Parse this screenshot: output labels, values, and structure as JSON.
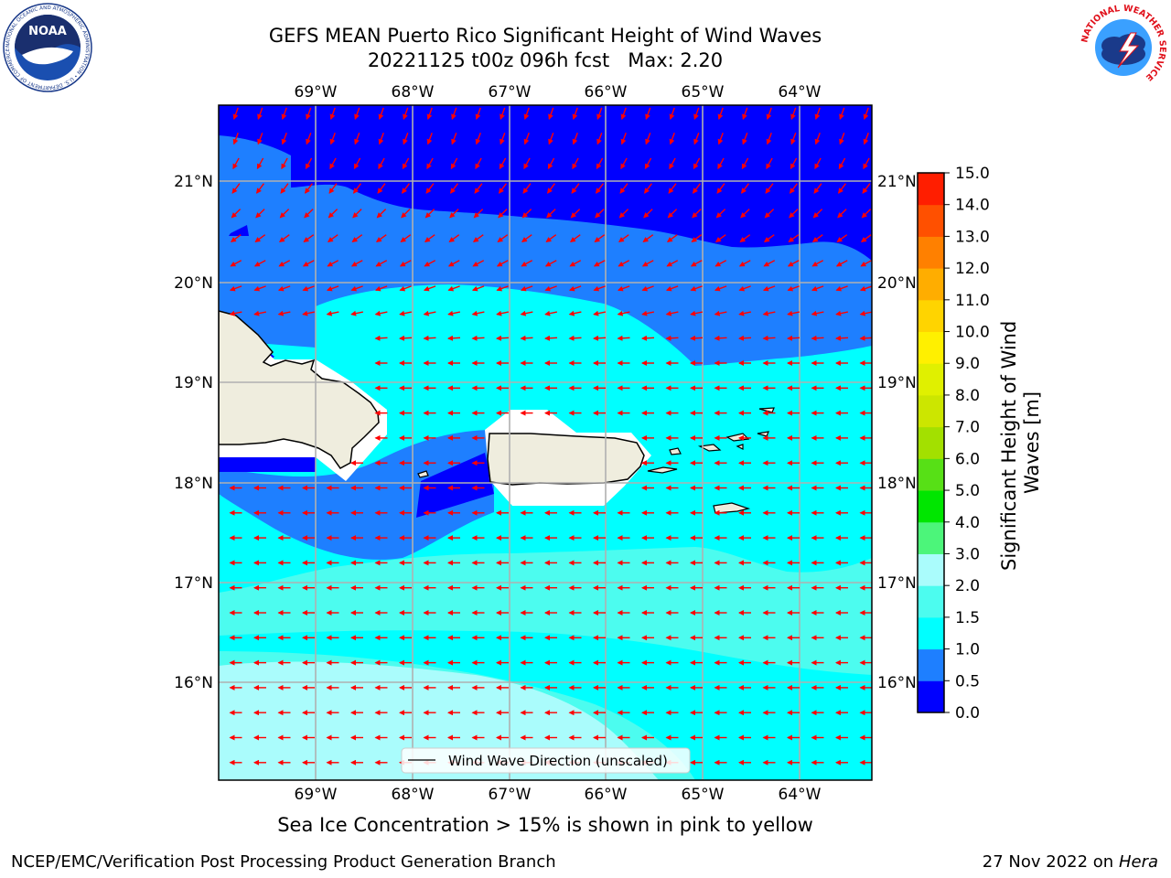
{
  "header": {
    "title_line1": "GEFS MEAN Puerto Rico Significant Height of Wind Waves",
    "title_line2": "20221125 t00z 096h fcst   Max: 2.20"
  },
  "map": {
    "lon_labels": [
      "69°W",
      "68°W",
      "67°W",
      "66°W",
      "65°W",
      "64°W"
    ],
    "lat_labels": [
      "21°N",
      "20°N",
      "19°N",
      "18°N",
      "17°N",
      "16°N"
    ],
    "legend_label": "Wind Wave Direction (unscaled)",
    "arrow_color": "#ff0000",
    "land_color": "#efedde"
  },
  "colorbar": {
    "label": "Significant Height of Wind Waves [m]",
    "ticks": [
      "0.0",
      "0.5",
      "1.0",
      "1.5",
      "2.0",
      "3.0",
      "4.0",
      "5.0",
      "6.0",
      "7.0",
      "8.0",
      "9.0",
      "10.0",
      "11.0",
      "12.0",
      "13.0",
      "14.0",
      "15.0"
    ],
    "colors": [
      "#0000ff",
      "#1e7fff",
      "#00ffff",
      "#4cfcef",
      "#aafcfc",
      "#4cf57a",
      "#00e600",
      "#57e016",
      "#a3e000",
      "#cce600",
      "#e0f000",
      "#fff000",
      "#ffd400",
      "#ffad00",
      "#ff8000",
      "#ff5000",
      "#ff1e00"
    ]
  },
  "footer": {
    "sea_ice_note": "Sea Ice Concentration > 15% is shown in pink to yellow",
    "left": "NCEP/EMC/Verification Post Processing Product Generation Branch",
    "right_date": "27 Nov 2022 on",
    "right_host": "Hera"
  },
  "logos": {
    "noaa_text": "NOAA",
    "noaa_ring": "NATIONAL OCEANIC AND ATMOSPHERIC ADMINISTRATION • U.S. DEPARTMENT OF COMMERCE",
    "nws_ring": "NATIONAL WEATHER SERVICE"
  }
}
